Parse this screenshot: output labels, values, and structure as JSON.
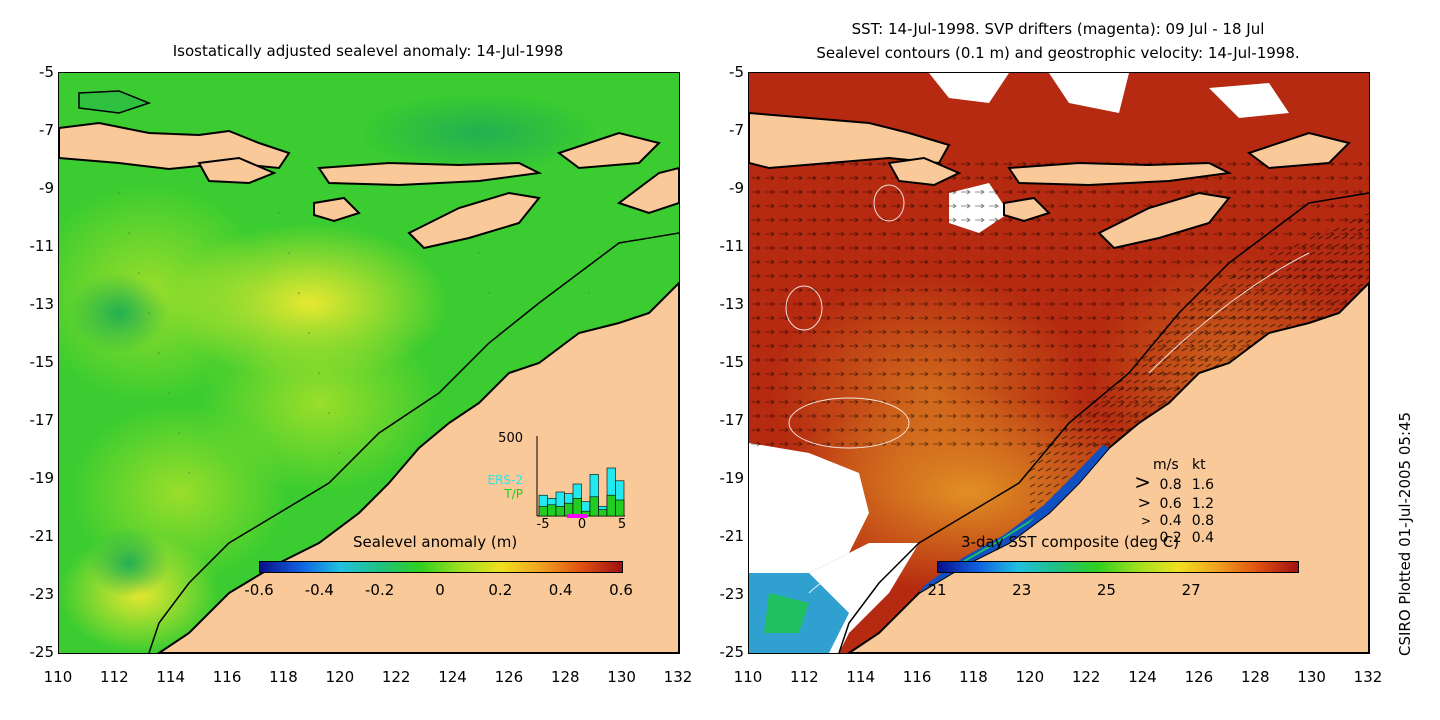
{
  "left_panel": {
    "title": "Isostatically adjusted sealevel anomaly: 14-Jul-1998",
    "y_ticks": [
      "-5",
      "-7",
      "-9",
      "-11",
      "-13",
      "-15",
      "-17",
      "-19",
      "-21",
      "-23",
      "-25"
    ],
    "x_ticks": [
      "110",
      "112",
      "114",
      "116",
      "118",
      "120",
      "122",
      "124",
      "126",
      "128",
      "130",
      "132"
    ],
    "colorbar": {
      "label": "Sealevel anomaly (m)",
      "ticks": [
        "-0.6",
        "-0.4",
        "-0.2",
        "0",
        "0.2",
        "0.4",
        "0.6"
      ]
    },
    "inset": {
      "ymax_label": "500",
      "legend_ers2": "ERS-2",
      "legend_tp": "T/P",
      "x_ticks": [
        "-5",
        "0",
        "5"
      ],
      "ers2_color": "#22e8f0",
      "tp_color": "#22cc22",
      "counts_ers2": [
        130,
        110,
        150,
        140,
        200,
        90,
        260,
        60,
        300,
        220
      ],
      "counts_tp": [
        60,
        70,
        60,
        80,
        110,
        30,
        120,
        40,
        130,
        100
      ]
    }
  },
  "right_panel": {
    "title_line1": "SST: 14-Jul-1998. SVP drifters (magenta): 09 Jul - 18 Jul",
    "title_line2": "Sealevel contours (0.1 m) and geostrophic velocity: 14-Jul-1998.",
    "y_ticks": [
      "-5",
      "-7",
      "-9",
      "-11",
      "-13",
      "-15",
      "-17",
      "-19",
      "-21",
      "-23",
      "-25"
    ],
    "x_ticks": [
      "110",
      "112",
      "114",
      "116",
      "118",
      "120",
      "122",
      "124",
      "126",
      "128",
      "130",
      "132"
    ],
    "colorbar": {
      "label": "3-day SST composite (deg C)",
      "ticks": [
        "21",
        "23",
        "25",
        "27"
      ]
    },
    "velocity_legend": {
      "header_ms": "m/s",
      "header_kt": "kt",
      "rows": [
        {
          "ms": "0.8",
          "kt": "1.6"
        },
        {
          "ms": "0.6",
          "kt": "1.2"
        },
        {
          "ms": "0.4",
          "kt": "0.8"
        },
        {
          "ms": "0.2",
          "kt": "0.4"
        }
      ]
    }
  },
  "footer": {
    "plotted_text": "CSIRO Plotted 01-Jul-2005 05:45"
  },
  "colors": {
    "land": "#f9c99a",
    "sla_base": "#33cc33",
    "sst_base": "#b52a10"
  }
}
